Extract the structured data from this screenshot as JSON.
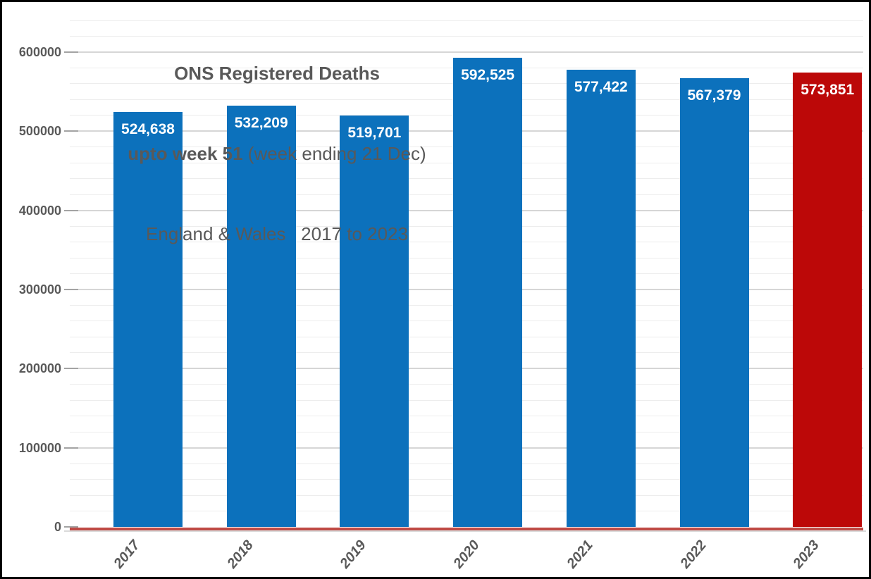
{
  "title": {
    "line1": "ONS Registered Deaths",
    "line2_bold": "upto week 51",
    "line2_rest": " (week ending 21 Dec)",
    "line3": "England & Wales   2017 to 2023"
  },
  "chart_data": {
    "type": "bar",
    "title": "ONS Registered Deaths upto week 51 (week ending 21 Dec) England & Wales 2017 to 2023",
    "categories": [
      "2017",
      "2018",
      "2019",
      "2020",
      "2021",
      "2022",
      "2023"
    ],
    "values": [
      524638,
      532209,
      519701,
      592525,
      577422,
      567379,
      573851
    ],
    "value_labels": [
      "524,638",
      "532,209",
      "519,701",
      "592,525",
      "577,422",
      "567,379",
      "573,851"
    ],
    "ylim": [
      0,
      640000
    ],
    "major_tick": 100000,
    "minor_tick": 20000,
    "ytick_labels": [
      "0",
      "100000",
      "200000",
      "300000",
      "400000",
      "500000",
      "600000"
    ],
    "xlabel": "",
    "ylabel": "",
    "grid": "horizontal major+minor",
    "legend": "none",
    "bar_color": "#0c71bc",
    "highlight_index": 6,
    "highlight_color": "#bc0808",
    "baseline_color": "#bf4a45",
    "axis_text_color": "#595959",
    "data_label_color": "#ffffff"
  }
}
